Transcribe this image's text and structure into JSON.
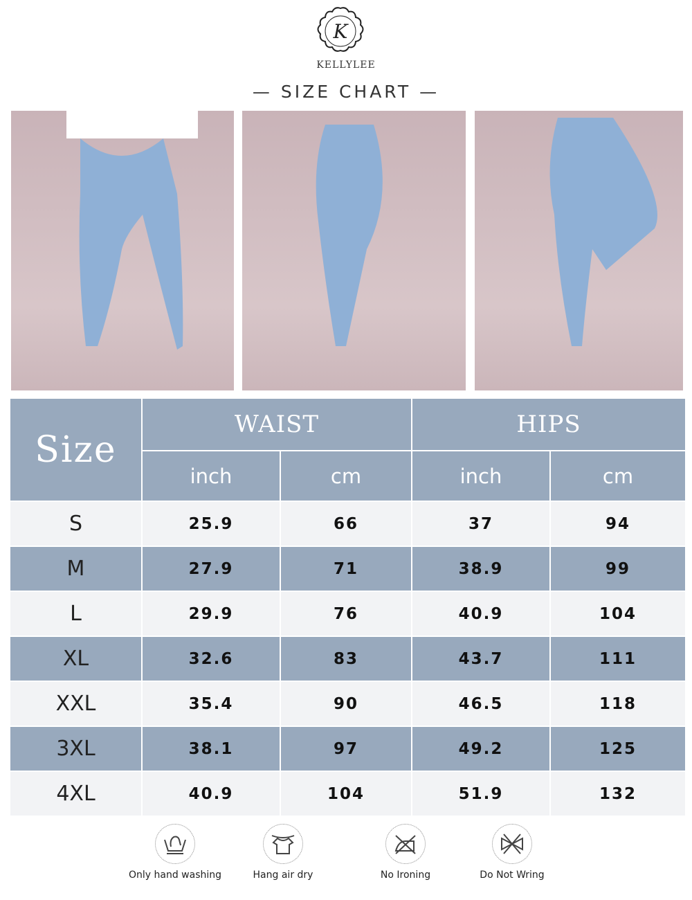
{
  "brand": {
    "name": "KELLYLEE",
    "logo_letter": "K"
  },
  "title": "SIZE CHART",
  "title_decor": "—",
  "table": {
    "size_header": "Size",
    "groups": [
      "WAIST",
      "HIPS"
    ],
    "units": [
      "inch",
      "cm",
      "inch",
      "cm"
    ],
    "rows": [
      {
        "size": "S",
        "waist_inch": "25.9",
        "waist_cm": "66",
        "hips_inch": "37",
        "hips_cm": "94"
      },
      {
        "size": "M",
        "waist_inch": "27.9",
        "waist_cm": "71",
        "hips_inch": "38.9",
        "hips_cm": "99"
      },
      {
        "size": "L",
        "waist_inch": "29.9",
        "waist_cm": "76",
        "hips_inch": "40.9",
        "hips_cm": "104"
      },
      {
        "size": "XL",
        "waist_inch": "32.6",
        "waist_cm": "83",
        "hips_inch": "43.7",
        "hips_cm": "111"
      },
      {
        "size": "XXL",
        "waist_inch": "35.4",
        "waist_cm": "90",
        "hips_inch": "46.5",
        "hips_cm": "118"
      },
      {
        "size": "3XL",
        "waist_inch": "38.1",
        "waist_cm": "97",
        "hips_inch": "49.2",
        "hips_cm": "125"
      },
      {
        "size": "4XL",
        "waist_inch": "40.9",
        "waist_cm": "104",
        "hips_inch": "51.9",
        "hips_cm": "132"
      }
    ]
  },
  "care": [
    {
      "icon": "hand-wash-icon",
      "label": "Only hand washing"
    },
    {
      "icon": "hang-dry-icon",
      "label": "Hang air dry"
    },
    {
      "icon": "no-iron-icon",
      "label": "No Ironing"
    },
    {
      "icon": "no-wring-icon",
      "label": "Do Not Wring"
    }
  ],
  "colors": {
    "header": "#98a9bd",
    "light_row": "#f2f3f5"
  }
}
